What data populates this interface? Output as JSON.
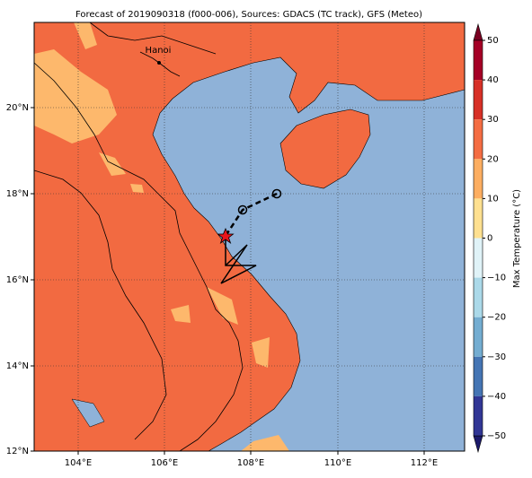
{
  "title": "Forecast of 2019090318 (f000-006), Sources: GDACS (TC track), GFS (Meteo)",
  "map": {
    "lon_ticks": [
      "104°E",
      "106°E",
      "108°E",
      "110°E",
      "112°E"
    ],
    "lat_ticks": [
      "20°N",
      "18°N",
      "16°N",
      "14°N",
      "12°N"
    ],
    "places": [
      {
        "label": "Hanoi"
      }
    ]
  },
  "colorbar": {
    "label": "Max Temperature (°C)",
    "ticks": [
      "50",
      "40",
      "30",
      "20",
      "10",
      "0",
      "−10",
      "−20",
      "−30",
      "−40",
      "−50"
    ]
  }
}
